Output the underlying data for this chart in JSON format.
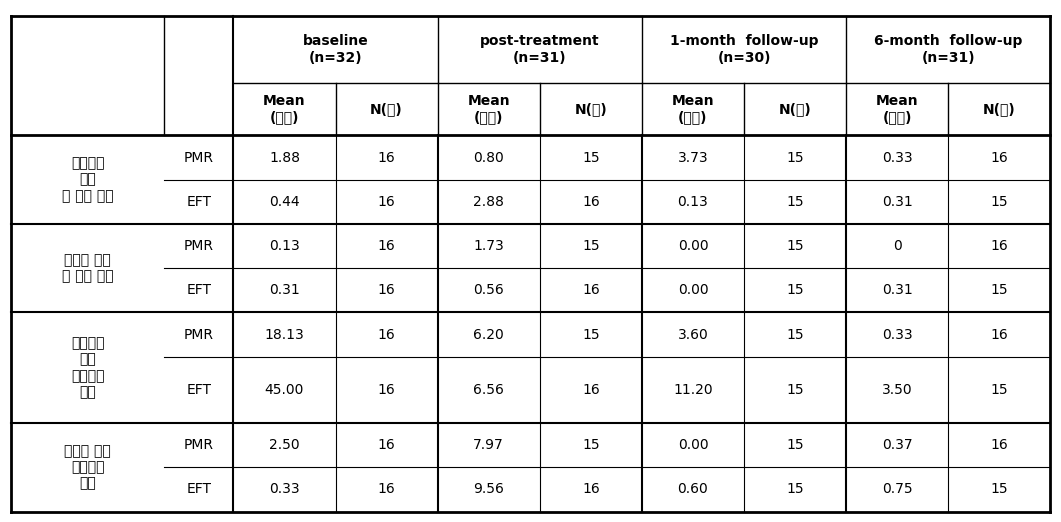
{
  "title": "",
  "col_groups": [
    {
      "label": "baseline\n(n=32)",
      "span": 2
    },
    {
      "label": "post-treatment\n(n=31)",
      "span": 2
    },
    {
      "label": "1-month  follow-up\n(n=30)",
      "span": 2
    },
    {
      "label": "6-month  follow-up\n(n=31)",
      "span": 2
    }
  ],
  "sub_headers": [
    "Mean\n(시간)",
    "N(명)",
    "Mean\n(시간)",
    "N(명)",
    "Mean\n(시간)",
    "N(명)",
    "Mean\n(시간)",
    "N(명)"
  ],
  "row_groups": [
    {
      "label": "증상으로\n인한\n일 손실 시간",
      "rows": [
        {
          "type": "PMR",
          "values": [
            "1.88",
            "16",
            "0.80",
            "15",
            "3.73",
            "15",
            "0.33",
            "16"
          ]
        },
        {
          "type": "EFT",
          "values": [
            "0.44",
            "16",
            "2.88",
            "16",
            "0.13",
            "15",
            "0.31",
            "15"
          ]
        }
      ]
    },
    {
      "label": "치료로 인한\n일 손실 시간",
      "rows": [
        {
          "type": "PMR",
          "values": [
            "0.13",
            "16",
            "1.73",
            "15",
            "0.00",
            "15",
            "0",
            "16"
          ]
        },
        {
          "type": "EFT",
          "values": [
            "0.31",
            "16",
            "0.56",
            "16",
            "0.00",
            "15",
            "0.31",
            "15"
          ]
        }
      ]
    },
    {
      "label": "증상으로\n인한\n가사손실\n시간",
      "rows": [
        {
          "type": "PMR",
          "values": [
            "18.13",
            "16",
            "6.20",
            "15",
            "3.60",
            "15",
            "0.33",
            "16"
          ]
        },
        {
          "type": "EFT",
          "values": [
            "45.00",
            "16",
            "6.56",
            "16",
            "11.20",
            "15",
            "3.50",
            "15"
          ]
        }
      ]
    },
    {
      "label": "치료로 인한\n가사손실\n시간",
      "rows": [
        {
          "type": "PMR",
          "values": [
            "2.50",
            "16",
            "7.97",
            "15",
            "0.00",
            "15",
            "0.37",
            "16"
          ]
        },
        {
          "type": "EFT",
          "values": [
            "0.33",
            "16",
            "9.56",
            "16",
            "0.60",
            "15",
            "0.75",
            "15"
          ]
        }
      ]
    }
  ],
  "bg_color": "#ffffff",
  "text_color": "#000000",
  "line_color": "#000000",
  "font_size_header": 10,
  "font_size_body": 10
}
